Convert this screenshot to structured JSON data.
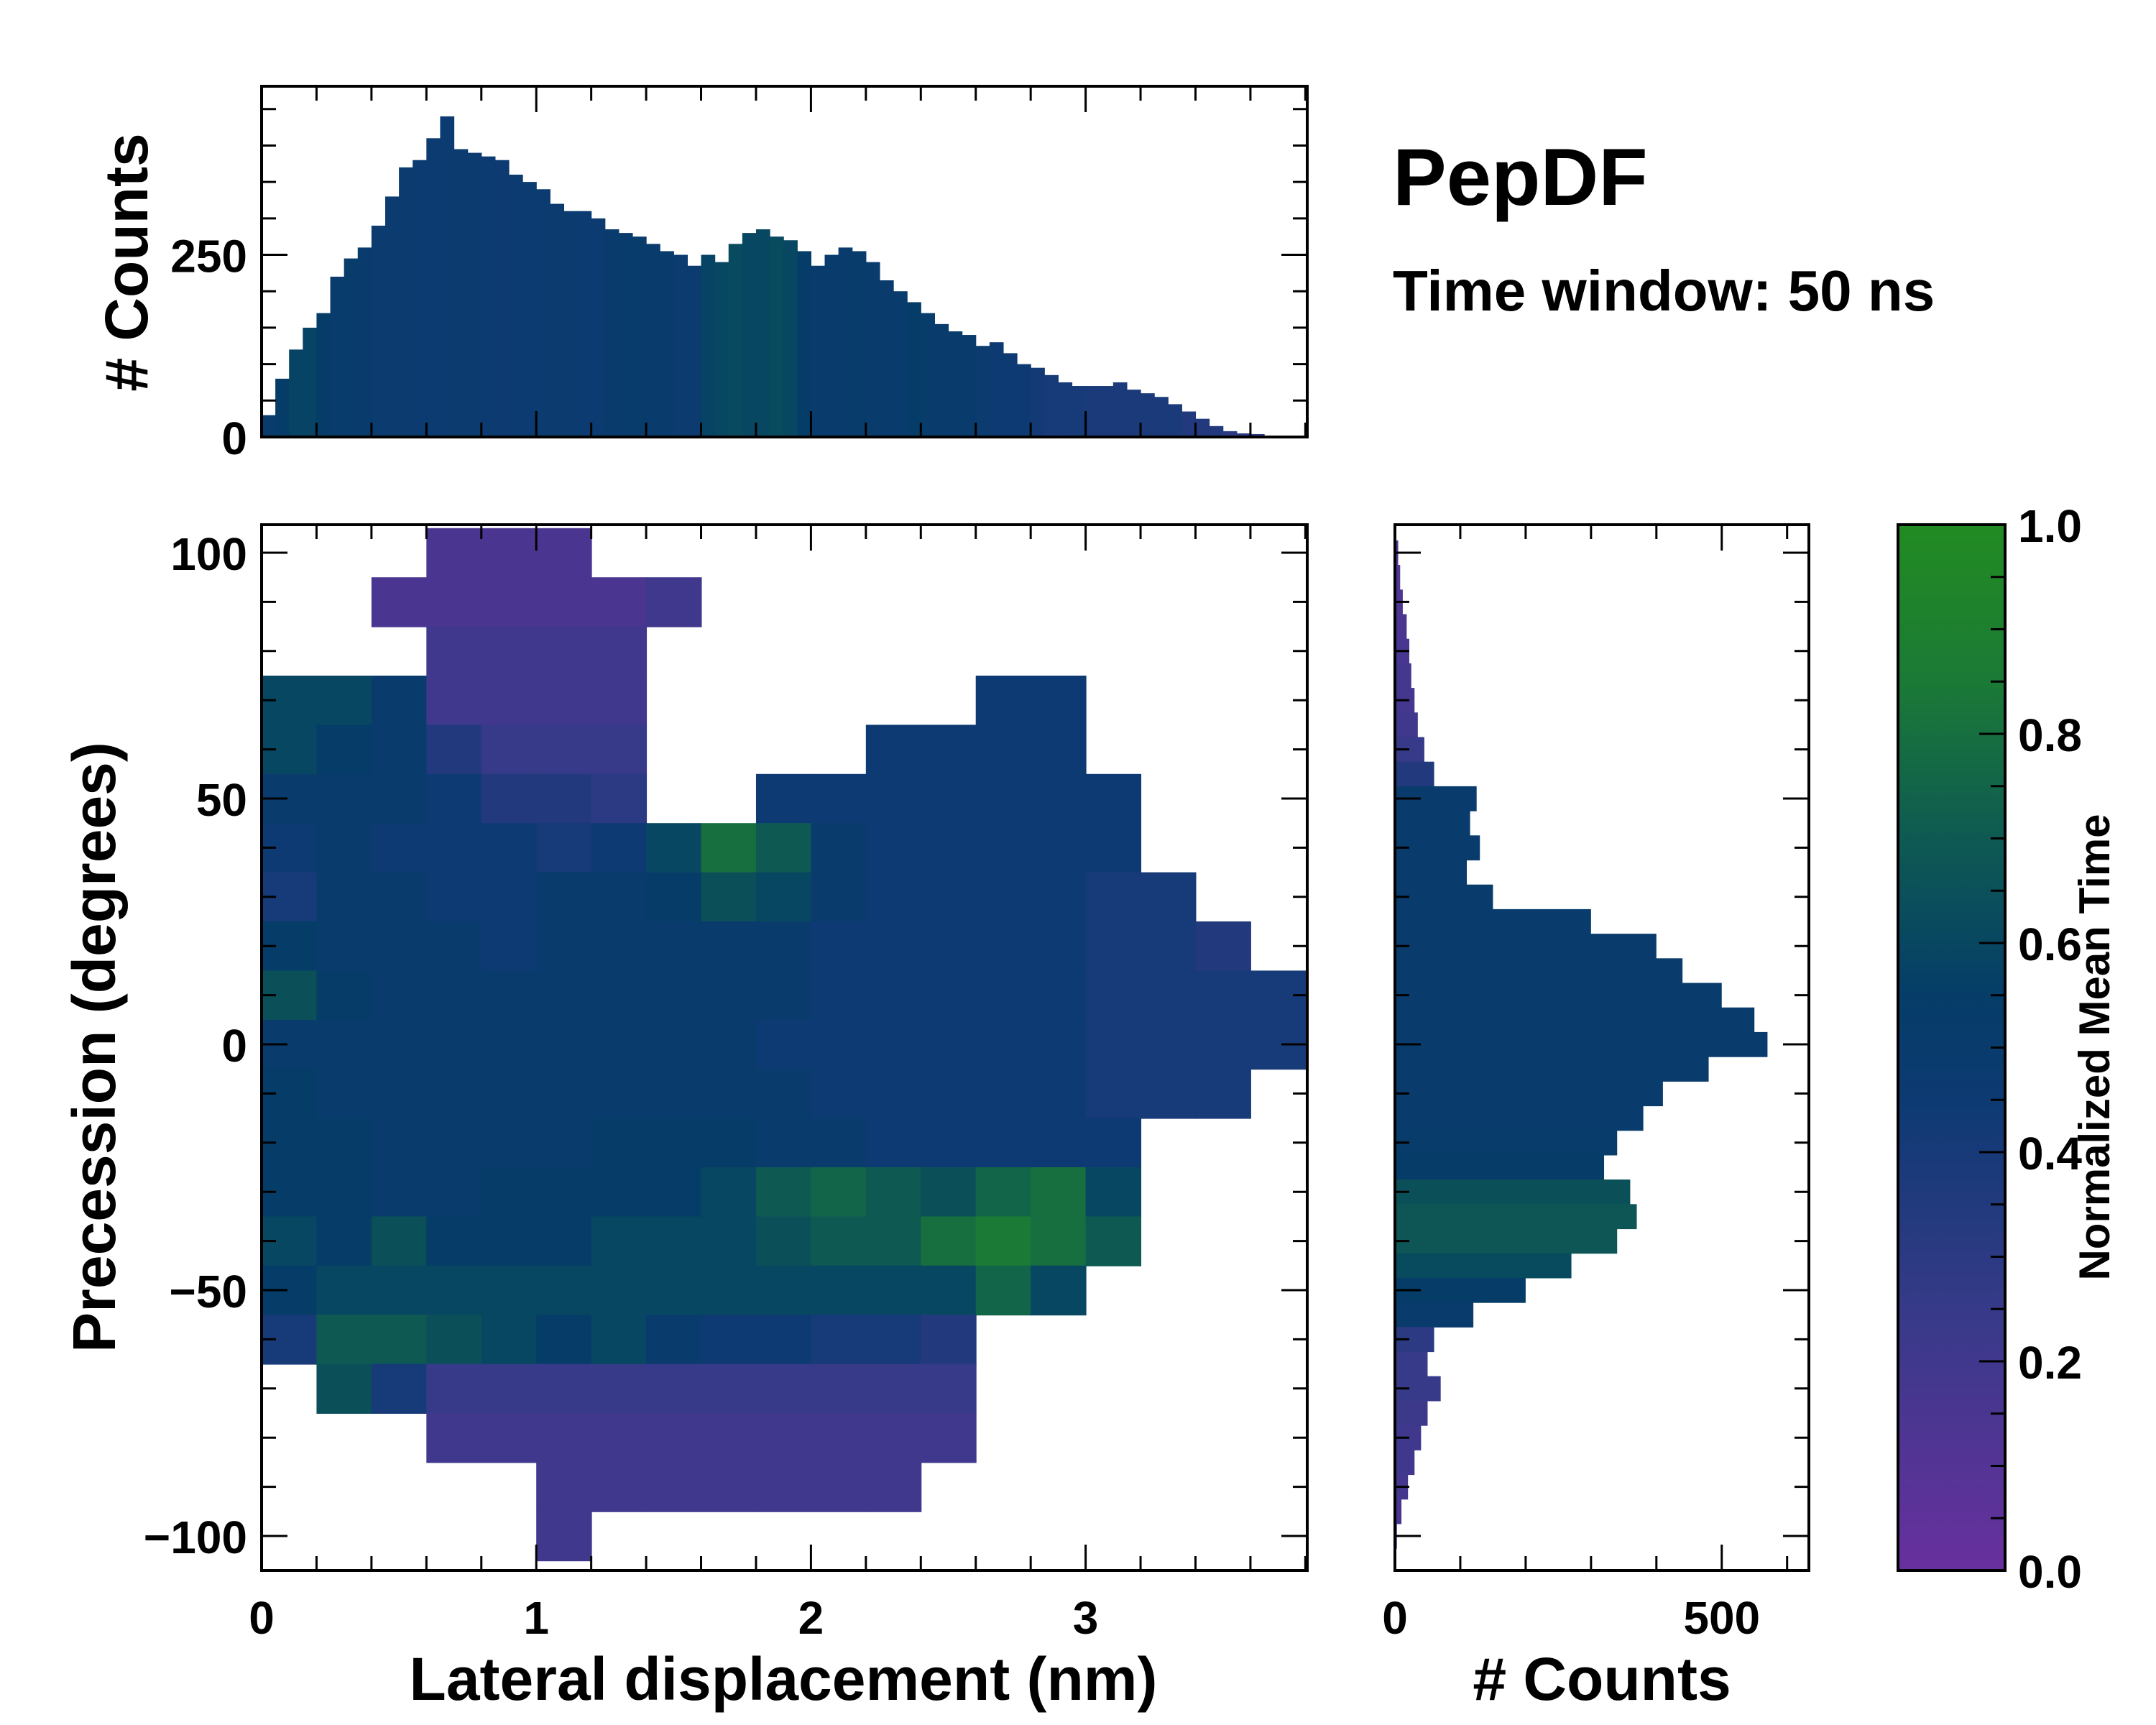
{
  "title": "PepDF",
  "subtitle": "Time window: 50 ns",
  "colormap": {
    "stops": [
      [
        0,
        "#68309e"
      ],
      [
        0.25,
        "#363a88"
      ],
      [
        0.45,
        "#0d3a72"
      ],
      [
        0.55,
        "#053d68"
      ],
      [
        0.7,
        "#0e5a52"
      ],
      [
        0.85,
        "#1b7a36"
      ],
      [
        1.0,
        "#228b22"
      ]
    ]
  },
  "chart_data": [
    {
      "type": "heatmap",
      "name": "main",
      "xlabel": "Lateral displacement (nm)",
      "ylabel": "Precession (degrees)",
      "xlim": [
        0,
        3.81
      ],
      "ylim": [
        -106.8,
        105.8
      ],
      "xticks": [
        0,
        1,
        2,
        3
      ],
      "xtick_labels": [
        "0",
        "1",
        "2",
        "3"
      ],
      "yticks": [
        100,
        50,
        0,
        -50,
        -100
      ],
      "ytick_labels": [
        "100",
        "50",
        "0",
        "−50",
        "−100"
      ],
      "x_bin_centers": [
        0.1,
        0.3,
        0.5,
        0.7,
        0.9,
        1.1,
        1.3,
        1.5,
        1.7,
        1.9,
        2.1,
        2.3,
        2.5,
        2.7,
        2.9,
        3.1,
        3.3,
        3.5,
        3.7
      ],
      "y_bin_centers": [
        100,
        90,
        80,
        70,
        60,
        50,
        40,
        30,
        20,
        10,
        0,
        -10,
        -20,
        -30,
        -40,
        -50,
        -60,
        -70,
        -80,
        -90,
        -100
      ],
      "values": [
        [
          null,
          null,
          null,
          0.15,
          0.15,
          0.15,
          null,
          null,
          null,
          null,
          null,
          null,
          null,
          null,
          null,
          null,
          null,
          null,
          null
        ],
        [
          null,
          null,
          0.15,
          0.15,
          0.15,
          0.15,
          0.15,
          0.2,
          null,
          null,
          null,
          null,
          null,
          null,
          null,
          null,
          null,
          null,
          null
        ],
        [
          null,
          null,
          null,
          0.2,
          0.2,
          0.2,
          0.2,
          null,
          null,
          null,
          null,
          null,
          null,
          null,
          null,
          null,
          null,
          null,
          null
        ],
        [
          0.6,
          0.6,
          0.5,
          0.2,
          0.2,
          0.2,
          0.2,
          null,
          null,
          null,
          null,
          null,
          null,
          0.45,
          0.45,
          null,
          null,
          null,
          null
        ],
        [
          0.6,
          0.55,
          0.5,
          0.35,
          0.25,
          0.25,
          0.25,
          null,
          null,
          null,
          null,
          0.45,
          0.45,
          0.45,
          0.45,
          null,
          null,
          null,
          null
        ],
        [
          0.5,
          0.5,
          0.5,
          0.45,
          0.35,
          0.35,
          0.3,
          null,
          null,
          0.45,
          0.45,
          0.45,
          0.45,
          0.45,
          0.45,
          0.45,
          null,
          null,
          null
        ],
        [
          0.45,
          0.5,
          0.45,
          0.45,
          0.45,
          0.4,
          0.45,
          0.6,
          0.8,
          0.7,
          0.5,
          0.45,
          0.45,
          0.45,
          0.45,
          0.45,
          null,
          null,
          null
        ],
        [
          0.4,
          0.5,
          0.5,
          0.45,
          0.45,
          0.5,
          0.5,
          0.55,
          0.65,
          0.6,
          0.5,
          0.45,
          0.45,
          0.45,
          0.45,
          0.4,
          0.4,
          null,
          null
        ],
        [
          0.55,
          0.5,
          0.5,
          0.5,
          0.45,
          0.5,
          0.5,
          0.5,
          0.5,
          0.5,
          0.45,
          0.45,
          0.45,
          0.45,
          0.45,
          0.4,
          0.4,
          0.35,
          null
        ],
        [
          0.65,
          0.55,
          0.5,
          0.5,
          0.5,
          0.5,
          0.5,
          0.5,
          0.5,
          0.5,
          0.45,
          0.45,
          0.45,
          0.45,
          0.45,
          0.4,
          0.4,
          0.4,
          0.4
        ],
        [
          0.5,
          0.5,
          0.5,
          0.5,
          0.5,
          0.5,
          0.5,
          0.5,
          0.5,
          0.45,
          0.45,
          0.45,
          0.45,
          0.45,
          0.45,
          0.4,
          0.4,
          0.4,
          0.4
        ],
        [
          0.55,
          0.5,
          0.5,
          0.5,
          0.5,
          0.5,
          0.5,
          0.5,
          0.5,
          0.5,
          0.45,
          0.45,
          0.45,
          0.45,
          0.45,
          0.4,
          0.4,
          0.4,
          null
        ],
        [
          0.55,
          0.55,
          0.5,
          0.5,
          0.5,
          0.5,
          0.55,
          0.55,
          0.55,
          0.5,
          0.5,
          0.45,
          0.45,
          0.45,
          0.45,
          0.45,
          null,
          null,
          null
        ],
        [
          0.55,
          0.55,
          0.5,
          0.5,
          0.55,
          0.55,
          0.55,
          0.55,
          0.6,
          0.7,
          0.75,
          0.7,
          0.65,
          0.75,
          0.8,
          0.6,
          null,
          null,
          null
        ],
        [
          0.6,
          0.55,
          0.65,
          0.55,
          0.55,
          0.55,
          0.6,
          0.6,
          0.6,
          0.65,
          0.7,
          0.7,
          0.8,
          0.85,
          0.8,
          0.7,
          null,
          null,
          null
        ],
        [
          0.55,
          0.6,
          0.6,
          0.6,
          0.6,
          0.6,
          0.6,
          0.6,
          0.6,
          0.6,
          0.6,
          0.6,
          0.6,
          0.75,
          0.6,
          null,
          null,
          null,
          null
        ],
        [
          0.4,
          0.7,
          0.7,
          0.65,
          0.6,
          0.55,
          0.6,
          0.5,
          0.45,
          0.45,
          0.4,
          0.4,
          0.35,
          null,
          null,
          null,
          null,
          null,
          null
        ],
        [
          null,
          0.65,
          0.4,
          0.25,
          0.25,
          0.25,
          0.25,
          0.25,
          0.25,
          0.25,
          0.25,
          0.25,
          0.25,
          null,
          null,
          null,
          null,
          null,
          null
        ],
        [
          null,
          null,
          null,
          0.2,
          0.2,
          0.2,
          0.2,
          0.2,
          0.2,
          0.2,
          0.2,
          0.2,
          0.2,
          null,
          null,
          null,
          null,
          null,
          null
        ],
        [
          null,
          null,
          null,
          null,
          null,
          0.2,
          0.2,
          0.2,
          0.2,
          0.2,
          0.2,
          0.2,
          null,
          null,
          null,
          null,
          null,
          null,
          null
        ],
        [
          null,
          null,
          null,
          null,
          null,
          0.2,
          null,
          null,
          null,
          null,
          null,
          null,
          null,
          null,
          null,
          null,
          null,
          null,
          null
        ]
      ]
    },
    {
      "type": "bar",
      "name": "top-histogram",
      "ylabel": "# Counts",
      "yticks": [
        0,
        250
      ],
      "ytick_labels": [
        "0",
        "250"
      ],
      "bin_width": 0.05,
      "x_start": 0,
      "values": [
        30,
        80,
        120,
        150,
        170,
        220,
        245,
        260,
        290,
        330,
        370,
        380,
        410,
        440,
        395,
        390,
        385,
        380,
        360,
        350,
        340,
        320,
        310,
        310,
        300,
        285,
        280,
        275,
        265,
        255,
        250,
        235,
        250,
        240,
        265,
        280,
        285,
        275,
        270,
        255,
        235,
        250,
        260,
        255,
        240,
        215,
        200,
        185,
        170,
        155,
        145,
        140,
        125,
        130,
        115,
        100,
        95,
        85,
        75,
        70,
        70,
        70,
        75,
        65,
        60,
        55,
        45,
        35,
        25,
        15,
        8,
        5,
        4,
        2,
        1
      ],
      "mean_time": [
        0.5,
        0.55,
        0.58,
        0.58,
        0.55,
        0.5,
        0.52,
        0.5,
        0.48,
        0.48,
        0.48,
        0.47,
        0.47,
        0.47,
        0.48,
        0.48,
        0.47,
        0.46,
        0.47,
        0.47,
        0.48,
        0.48,
        0.48,
        0.47,
        0.47,
        0.5,
        0.5,
        0.52,
        0.5,
        0.5,
        0.48,
        0.48,
        0.58,
        0.6,
        0.62,
        0.6,
        0.6,
        0.62,
        0.6,
        0.55,
        0.5,
        0.5,
        0.5,
        0.52,
        0.5,
        0.5,
        0.5,
        0.55,
        0.52,
        0.5,
        0.5,
        0.5,
        0.48,
        0.45,
        0.45,
        0.45,
        0.42,
        0.4,
        0.4,
        0.4,
        0.38,
        0.38,
        0.38,
        0.38,
        0.38,
        0.38,
        0.38,
        0.35,
        0.35,
        0.35,
        0.3,
        0.3,
        0.3,
        0.3,
        0.3
      ]
    },
    {
      "type": "bar",
      "name": "right-histogram",
      "orientation": "horizontal",
      "xlabel": "# Counts",
      "xticks": [
        0,
        500
      ],
      "xtick_labels": [
        "0",
        "500"
      ],
      "xlim": [
        0,
        634
      ],
      "bin_width": 5,
      "y_centers_from": 100,
      "values": [
        5,
        8,
        12,
        18,
        22,
        25,
        30,
        35,
        45,
        60,
        125,
        115,
        130,
        110,
        150,
        300,
        400,
        440,
        500,
        550,
        570,
        480,
        410,
        380,
        340,
        320,
        360,
        370,
        340,
        270,
        200,
        120,
        60,
        50,
        70,
        50,
        40,
        30,
        20,
        10,
        3
      ],
      "mean_time": [
        0.12,
        0.12,
        0.14,
        0.15,
        0.16,
        0.18,
        0.18,
        0.2,
        0.25,
        0.35,
        0.5,
        0.5,
        0.5,
        0.5,
        0.5,
        0.5,
        0.5,
        0.5,
        0.5,
        0.5,
        0.5,
        0.5,
        0.5,
        0.5,
        0.52,
        0.55,
        0.65,
        0.68,
        0.68,
        0.62,
        0.55,
        0.5,
        0.3,
        0.25,
        0.25,
        0.22,
        0.2,
        0.2,
        0.18,
        0.15,
        0.15
      ]
    },
    {
      "type": "colorbar",
      "name": "colorbar",
      "label": "Normalized Mean Time",
      "range": [
        0,
        1
      ],
      "ticks": [
        0,
        0.2,
        0.4,
        0.6,
        0.8,
        1.0
      ],
      "tick_labels": [
        "0.0",
        "0.2",
        "0.4",
        "0.6",
        "0.8",
        "1.0"
      ]
    }
  ]
}
